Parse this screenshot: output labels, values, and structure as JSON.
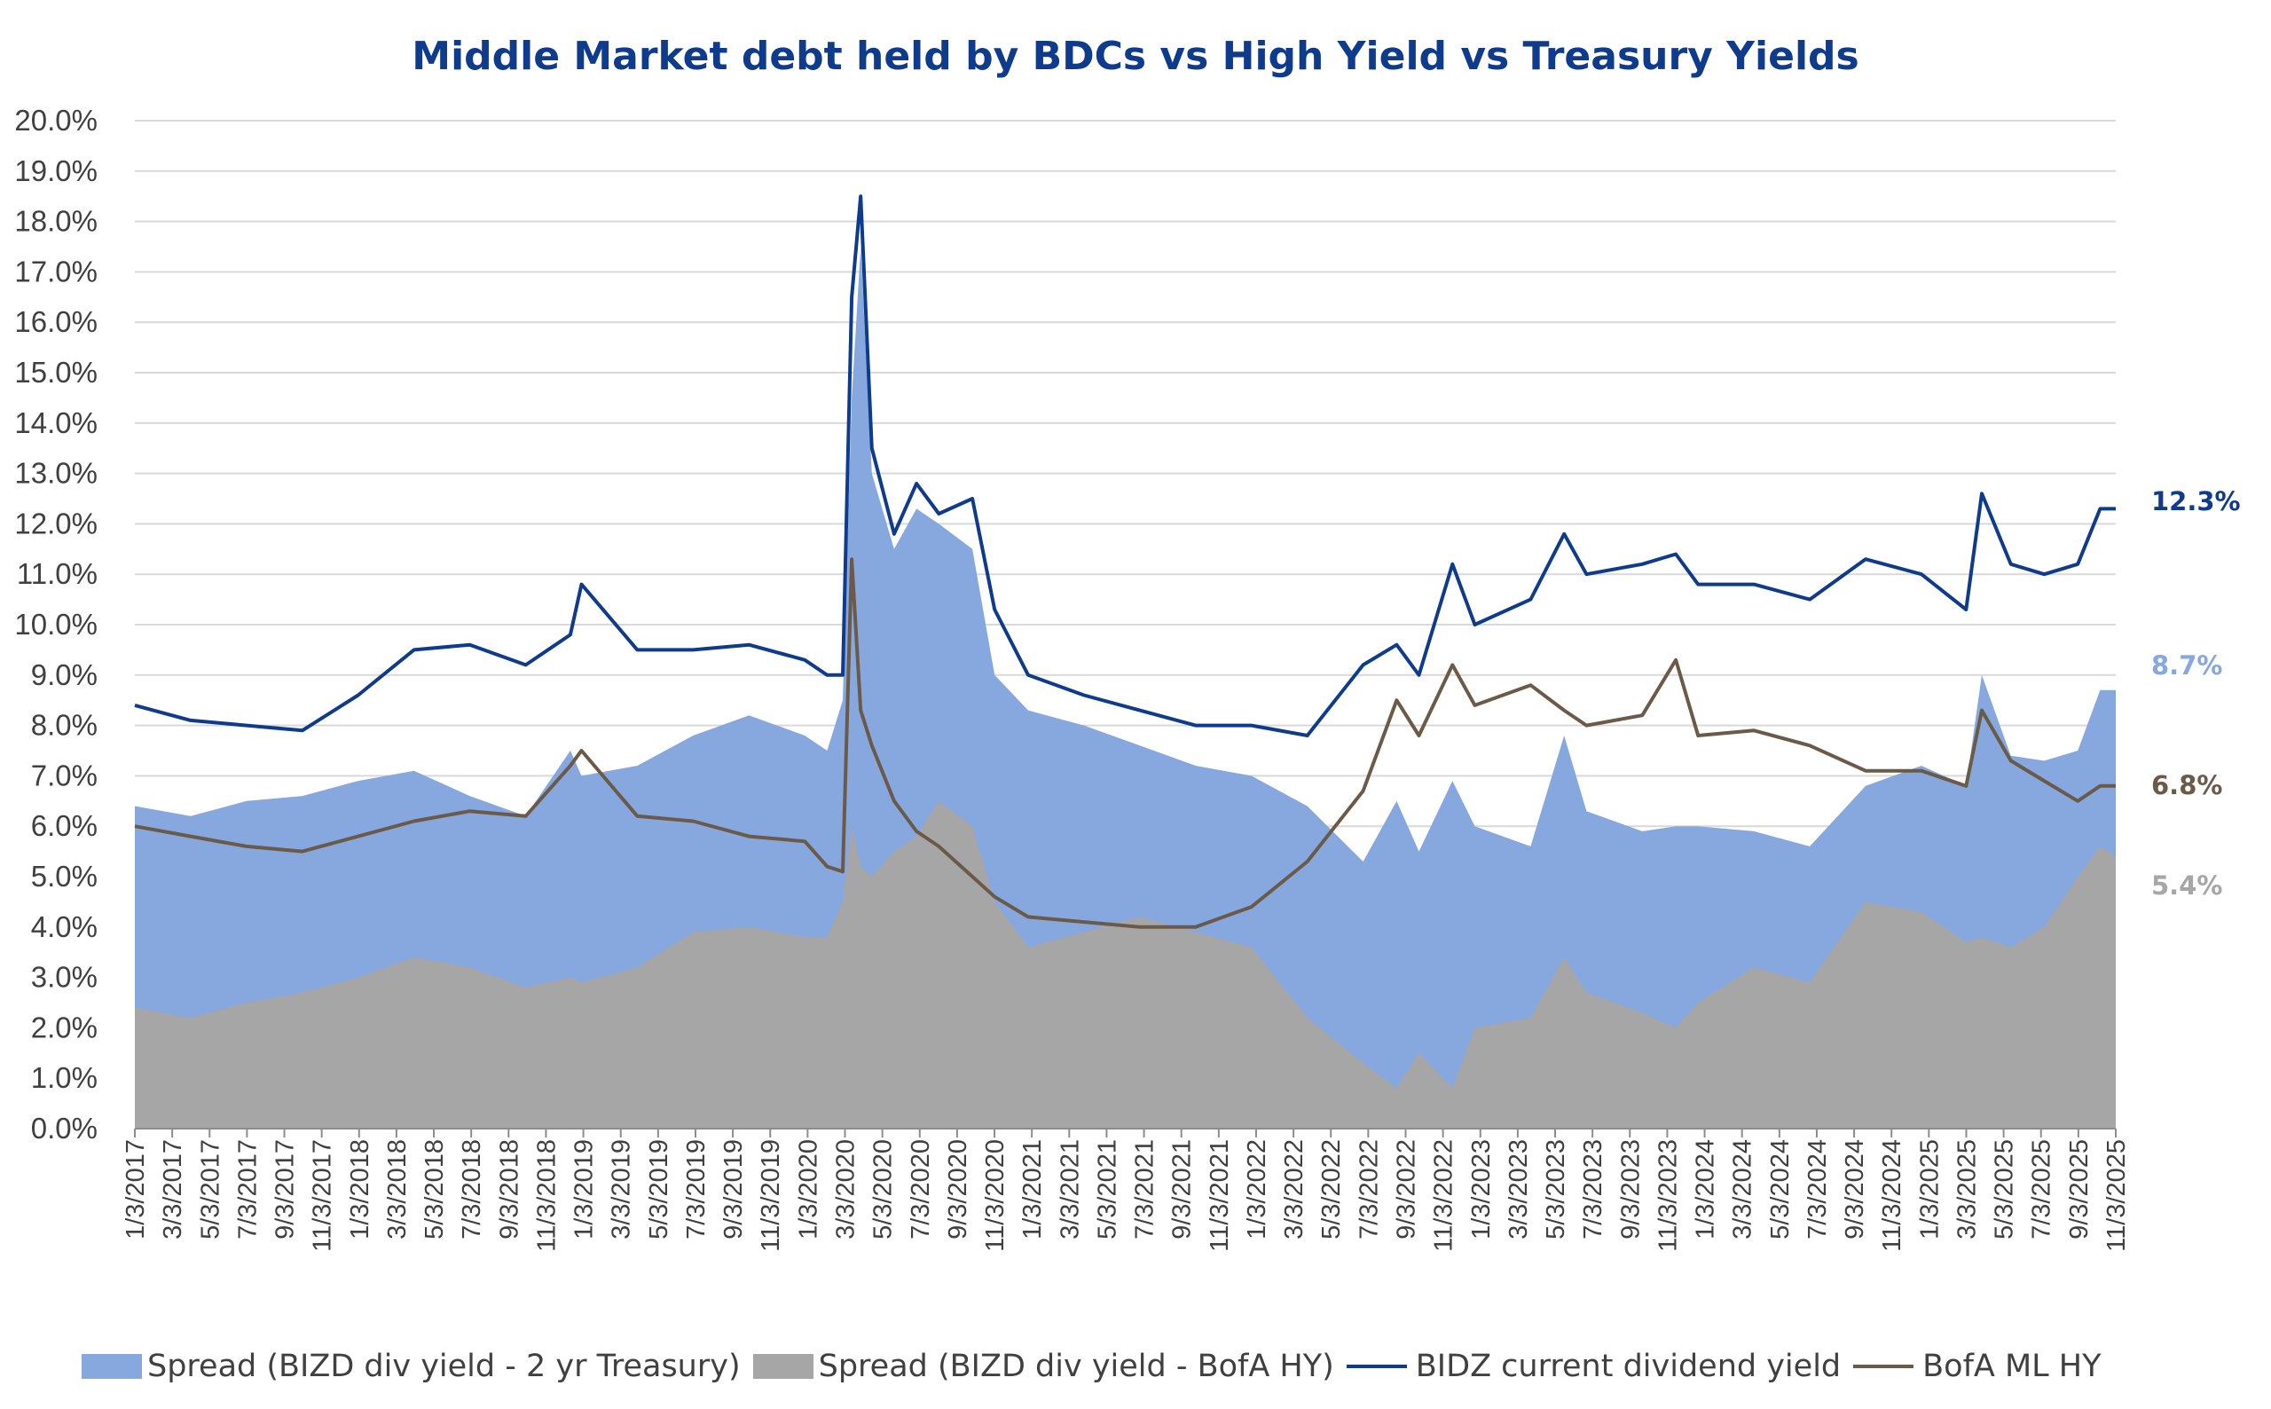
{
  "chart_data": {
    "type": "area",
    "title": "Middle Market debt held by BDCs vs High Yield vs Treasury Yields",
    "ylim": [
      0,
      20
    ],
    "yticks": [
      "0.0%",
      "1.0%",
      "2.0%",
      "3.0%",
      "4.0%",
      "5.0%",
      "6.0%",
      "7.0%",
      "8.0%",
      "9.0%",
      "10.0%",
      "11.0%",
      "12.0%",
      "13.0%",
      "14.0%",
      "15.0%",
      "16.0%",
      "17.0%",
      "18.0%",
      "19.0%",
      "20.0%"
    ],
    "x_labels": [
      "1/3/2017",
      "3/3/2017",
      "5/3/2017",
      "7/3/2017",
      "9/3/2017",
      "11/3/2017",
      "1/3/2018",
      "3/3/2018",
      "5/3/2018",
      "7/3/2018",
      "9/3/2018",
      "11/3/2018",
      "1/3/2019",
      "3/3/2019",
      "5/3/2019",
      "7/3/2019",
      "9/3/2019",
      "11/3/2019",
      "1/3/2020",
      "3/3/2020",
      "5/3/2020",
      "7/3/2020",
      "9/3/2020",
      "11/3/2020",
      "1/3/2021",
      "3/3/2021",
      "5/3/2021",
      "7/3/2021",
      "9/3/2021",
      "11/3/2021",
      "1/3/2022",
      "3/3/2022",
      "5/3/2022",
      "7/3/2022",
      "9/3/2022",
      "11/3/2022",
      "1/3/2023",
      "3/3/2023",
      "5/3/2023",
      "7/3/2023",
      "9/3/2023",
      "11/3/2023",
      "1/3/2024",
      "3/3/2024",
      "5/3/2024",
      "7/3/2024",
      "9/3/2024",
      "11/3/2024",
      "1/3/2025",
      "3/3/2025",
      "5/3/2025",
      "7/3/2025",
      "9/3/2025",
      "11/3/2025"
    ],
    "x": [
      2017.0,
      2017.25,
      2017.5,
      2017.75,
      2018.0,
      2018.25,
      2018.5,
      2018.75,
      2018.95,
      2019.0,
      2019.25,
      2019.5,
      2019.75,
      2020.0,
      2020.1,
      2020.17,
      2020.21,
      2020.25,
      2020.3,
      2020.4,
      2020.5,
      2020.6,
      2020.75,
      2020.85,
      2021.0,
      2021.25,
      2021.5,
      2021.75,
      2022.0,
      2022.25,
      2022.5,
      2022.65,
      2022.75,
      2022.9,
      2023.0,
      2023.25,
      2023.4,
      2023.5,
      2023.75,
      2023.9,
      2024.0,
      2024.25,
      2024.5,
      2024.75,
      2025.0,
      2025.2,
      2025.27,
      2025.4,
      2025.55,
      2025.7,
      2025.8,
      2025.87
    ],
    "series": [
      {
        "name": "Spread (BIZD div yield - 2 yr Treasury)",
        "color": "#86a8df",
        "values": [
          6.4,
          6.2,
          6.5,
          6.6,
          6.9,
          7.1,
          6.6,
          6.2,
          7.5,
          7.0,
          7.2,
          7.8,
          8.2,
          7.8,
          7.5,
          8.5,
          14.5,
          17.5,
          13.0,
          11.5,
          12.3,
          12.0,
          11.5,
          9.0,
          8.3,
          8.0,
          7.6,
          7.2,
          7.0,
          6.4,
          5.3,
          6.5,
          5.5,
          6.9,
          6.0,
          5.6,
          7.8,
          6.3,
          5.9,
          6.0,
          6.0,
          5.9,
          5.6,
          6.8,
          7.2,
          6.8,
          9.0,
          7.4,
          7.3,
          7.5,
          8.7,
          8.7
        ]
      },
      {
        "name": "Spread (BIZD div yield - BofA HY)",
        "color": "#a6a6a6",
        "values": [
          2.4,
          2.2,
          2.5,
          2.7,
          3.0,
          3.4,
          3.2,
          2.8,
          3.0,
          2.9,
          3.2,
          3.9,
          4.0,
          3.8,
          3.8,
          4.5,
          6.0,
          5.2,
          5.0,
          5.5,
          5.8,
          6.5,
          6.0,
          4.5,
          3.6,
          3.9,
          4.2,
          3.9,
          3.6,
          2.2,
          1.3,
          0.8,
          1.5,
          0.8,
          2.0,
          2.2,
          3.4,
          2.7,
          2.3,
          2.0,
          2.5,
          3.2,
          2.9,
          4.5,
          4.3,
          3.7,
          3.8,
          3.6,
          4.0,
          5.0,
          5.6,
          5.4
        ]
      },
      {
        "name": "BIDZ current dividend yield",
        "color": "#0f3b8c",
        "values": [
          8.4,
          8.1,
          8.0,
          7.9,
          8.6,
          9.5,
          9.6,
          9.2,
          9.8,
          10.8,
          9.5,
          9.5,
          9.6,
          9.3,
          9.0,
          9.0,
          16.5,
          18.5,
          13.5,
          11.8,
          12.8,
          12.2,
          12.5,
          10.3,
          9.0,
          8.6,
          8.3,
          8.0,
          8.0,
          7.8,
          9.2,
          9.6,
          9.0,
          11.2,
          10.0,
          10.5,
          11.8,
          11.0,
          11.2,
          11.4,
          10.8,
          10.8,
          10.5,
          11.3,
          11.0,
          10.3,
          12.6,
          11.2,
          11.0,
          11.2,
          12.3,
          12.3
        ]
      },
      {
        "name": "BofA ML HY",
        "color": "#6b5a48",
        "values": [
          6.0,
          5.8,
          5.6,
          5.5,
          5.8,
          6.1,
          6.3,
          6.2,
          7.2,
          7.5,
          6.2,
          6.1,
          5.8,
          5.7,
          5.2,
          5.1,
          11.3,
          8.3,
          7.6,
          6.5,
          5.9,
          5.6,
          5.0,
          4.6,
          4.2,
          4.1,
          4.0,
          4.0,
          4.4,
          5.3,
          6.7,
          8.5,
          7.8,
          9.2,
          8.4,
          8.8,
          8.3,
          8.0,
          8.2,
          9.3,
          7.8,
          7.9,
          7.6,
          7.1,
          7.1,
          6.8,
          8.3,
          7.3,
          6.9,
          6.5,
          6.8,
          6.8
        ]
      }
    ],
    "end_labels": [
      {
        "text": "12.3%",
        "series": "BIDZ current dividend yield",
        "color": "#0f3b8c"
      },
      {
        "text": "8.7%",
        "series": "Spread (BIZD div yield - 2 yr Treasury)",
        "color": "#86a8df"
      },
      {
        "text": "6.8%",
        "series": "BofA ML HY",
        "color": "#6b5a48"
      },
      {
        "text": "5.4%",
        "series": "Spread (BIZD div yield - BofA HY)",
        "color": "#a6a6a6"
      }
    ],
    "grid": true,
    "legend_position": "bottom"
  }
}
